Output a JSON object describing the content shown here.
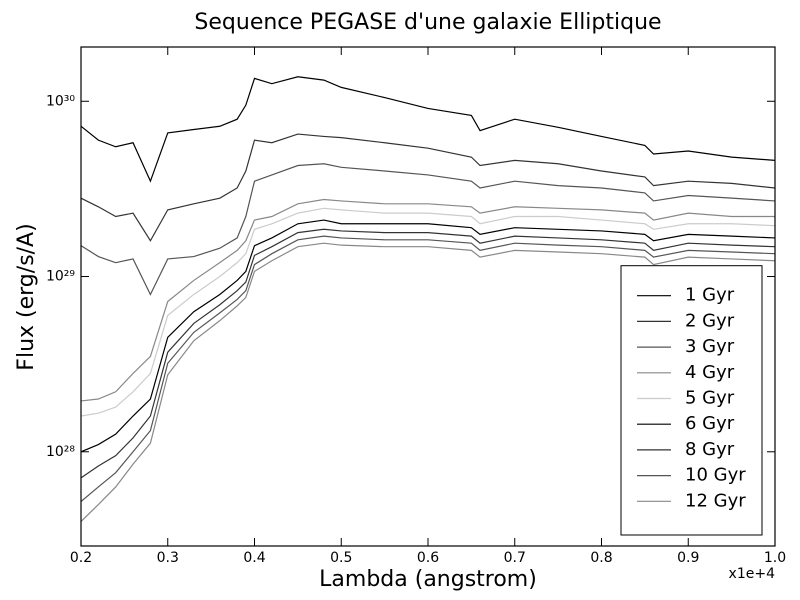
{
  "chart_data": {
    "type": "line",
    "title": "Sequence PEGASE d'une galaxie Elliptique",
    "x_label": "Lambda (angstrom)",
    "y_label": "Flux (erg/s/A)",
    "x_offset_label": "x1e+4",
    "log_y": true,
    "grid": false,
    "legend": "lower right",
    "xlim": [
      0.2,
      1.0
    ],
    "ylim": [
      2.9e+27,
      2.04e+30
    ],
    "xticks": [
      0.2,
      0.3,
      0.4,
      0.5,
      0.6,
      0.7,
      0.8,
      0.9,
      {
        "value": 1.0,
        "label": "1.0"
      }
    ],
    "yticks": [
      {
        "value": 1e+28,
        "label": "10²⁸"
      },
      {
        "value": 1e+29,
        "label": "10²⁹"
      },
      {
        "value": 1e+30,
        "label": "10³⁰"
      }
    ],
    "x": [
      0.2,
      0.22,
      0.24,
      0.26,
      0.28,
      0.3,
      0.33,
      0.36,
      0.38,
      0.39,
      0.4,
      0.42,
      0.45,
      0.48,
      0.5,
      0.55,
      0.6,
      0.65,
      0.66,
      0.7,
      0.75,
      0.8,
      0.85,
      0.86,
      0.9,
      0.95,
      1.0
    ],
    "series": [
      {
        "name": "1 Gyr",
        "color": "#000000",
        "values": [
          7.2e+29,
          6e+29,
          5.5e+29,
          5.8e+29,
          3.5e+29,
          6.6e+29,
          6.9e+29,
          7.2e+29,
          7.9e+29,
          9.5e+29,
          1.35e+30,
          1.26e+30,
          1.38e+30,
          1.32e+30,
          1.2e+30,
          1.05e+30,
          9.1e+29,
          8.3e+29,
          6.8e+29,
          7.9e+29,
          7.1e+29,
          6.3e+29,
          5.6e+29,
          5e+29,
          5.2e+29,
          4.8e+29,
          4.6e+29
        ]
      },
      {
        "name": "2 Gyr",
        "color": "#333333",
        "values": [
          2.8e+29,
          2.5e+29,
          2.2e+29,
          2.3e+29,
          1.6e+29,
          2.4e+29,
          2.6e+29,
          2.8e+29,
          3.2e+29,
          4e+29,
          6e+29,
          5.8e+29,
          6.5e+29,
          6.3e+29,
          6.2e+29,
          5.8e+29,
          5.4e+29,
          4.8e+29,
          4.3e+29,
          4.6e+29,
          4.4e+29,
          4e+29,
          3.7e+29,
          3.3e+29,
          3.5e+29,
          3.4e+29,
          3.2e+29
        ]
      },
      {
        "name": "3 Gyr",
        "color": "#555555",
        "values": [
          1.5e+29,
          1.3e+29,
          1.2e+29,
          1.26e+29,
          7.9e+28,
          1.26e+29,
          1.3e+29,
          1.45e+29,
          1.66e+29,
          2.2e+29,
          3.5e+29,
          3.8e+29,
          4.3e+29,
          4.4e+29,
          4.2e+29,
          4e+29,
          3.8e+29,
          3.5e+29,
          3.2e+29,
          3.5e+29,
          3.3e+29,
          3.2e+29,
          3e+29,
          2.7e+29,
          2.9e+29,
          2.8e+29,
          2.7e+29
        ]
      },
      {
        "name": "4 Gyr",
        "color": "#888888",
        "values": [
          1.95e+28,
          2e+28,
          2.2e+28,
          2.8e+28,
          3.5e+28,
          7.2e+28,
          9.5e+28,
          1.2e+29,
          1.41e+29,
          1.6e+29,
          2.1e+29,
          2.2e+29,
          2.6e+29,
          2.75e+29,
          2.7e+29,
          2.6e+29,
          2.6e+29,
          2.5e+29,
          2.3e+29,
          2.5e+29,
          2.45e+29,
          2.4e+29,
          2.3e+29,
          2.1e+29,
          2.3e+29,
          2.2e+29,
          2.2e+29
        ]
      },
      {
        "name": "5 Gyr",
        "color": "#cccccc",
        "values": [
          1.6e+28,
          1.66e+28,
          1.8e+28,
          2.2e+28,
          2.8e+28,
          6e+28,
          7.9e+28,
          1e+29,
          1.2e+29,
          1.35e+29,
          1.86e+29,
          2e+29,
          2.3e+29,
          2.45e+29,
          2.4e+29,
          2.3e+29,
          2.3e+29,
          2.2e+29,
          2e+29,
          2.2e+29,
          2.2e+29,
          2.1e+29,
          2e+29,
          1.86e+29,
          2e+29,
          2e+29,
          1.95e+29
        ]
      },
      {
        "name": "6 Gyr",
        "color": "#000000",
        "values": [
          1e+28,
          1.1e+28,
          1.26e+28,
          1.6e+28,
          2e+28,
          4.5e+28,
          6.3e+28,
          7.9e+28,
          9.5e+28,
          1.07e+29,
          1.5e+29,
          1.66e+29,
          2e+29,
          2.1e+29,
          2e+29,
          2e+29,
          2e+29,
          1.9e+29,
          1.74e+29,
          1.9e+29,
          1.86e+29,
          1.82e+29,
          1.74e+29,
          1.6e+29,
          1.74e+29,
          1.7e+29,
          1.66e+29
        ]
      },
      {
        "name": "8 Gyr",
        "color": "#333333",
        "values": [
          7.1e+27,
          8.3e+27,
          9.5e+27,
          1.2e+28,
          1.6e+28,
          3.7e+28,
          5.4e+28,
          6.9e+28,
          8.3e+28,
          9.3e+28,
          1.32e+29,
          1.48e+29,
          1.78e+29,
          1.86e+29,
          1.82e+29,
          1.78e+29,
          1.78e+29,
          1.7e+29,
          1.55e+29,
          1.7e+29,
          1.66e+29,
          1.62e+29,
          1.55e+29,
          1.41e+29,
          1.55e+29,
          1.51e+29,
          1.48e+29
        ]
      },
      {
        "name": "10 Gyr",
        "color": "#555555",
        "values": [
          5.2e+27,
          6.3e+27,
          7.6e+27,
          1e+28,
          1.32e+28,
          3.2e+28,
          4.8e+28,
          6.2e+28,
          7.4e+28,
          8.3e+28,
          1.17e+29,
          1.35e+29,
          1.62e+29,
          1.7e+29,
          1.66e+29,
          1.62e+29,
          1.62e+29,
          1.55e+29,
          1.41e+29,
          1.55e+29,
          1.51e+29,
          1.48e+29,
          1.41e+29,
          1.29e+29,
          1.41e+29,
          1.38e+29,
          1.35e+29
        ]
      },
      {
        "name": "12 Gyr",
        "color": "#888888",
        "values": [
          4e+27,
          5e+27,
          6.3e+27,
          8.5e+27,
          1.12e+28,
          2.75e+28,
          4.3e+28,
          5.6e+28,
          6.8e+28,
          7.6e+28,
          1.07e+29,
          1.23e+29,
          1.48e+29,
          1.55e+29,
          1.51e+29,
          1.48e+29,
          1.48e+29,
          1.41e+29,
          1.29e+29,
          1.41e+29,
          1.38e+29,
          1.35e+29,
          1.29e+29,
          1.17e+29,
          1.29e+29,
          1.26e+29,
          1.23e+29
        ]
      }
    ]
  }
}
